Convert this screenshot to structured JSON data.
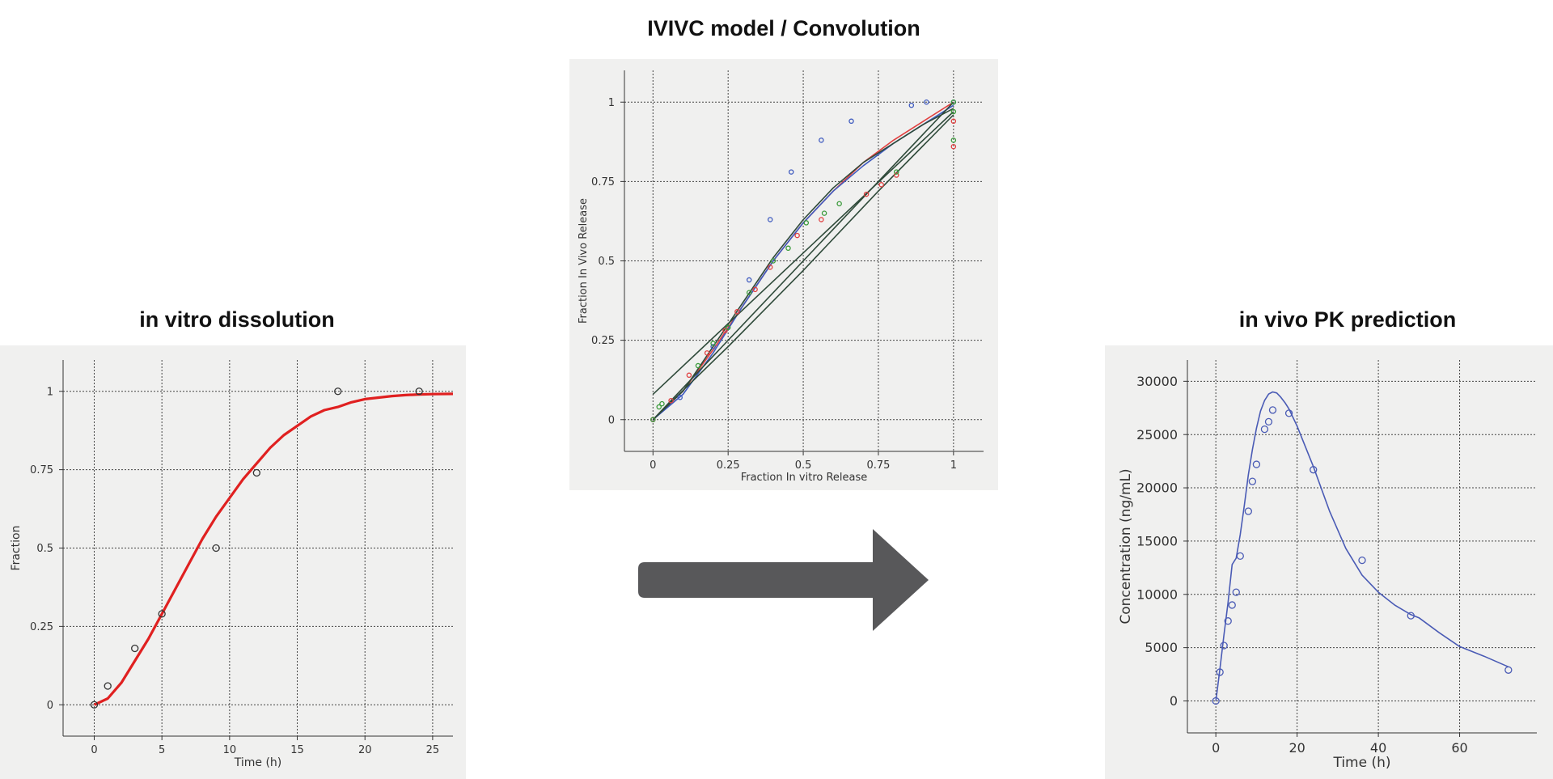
{
  "titles": {
    "left": "in vitro dissolution",
    "center": "IVIVC model / Convolution",
    "right": "in vivo PK prediction"
  },
  "colors": {
    "panel_bg": "#f0f0ef",
    "dissolution_curve": "#e02020",
    "pk_curve": "#4a5bb5",
    "ivivc_blue": "#3f5bbf",
    "ivivc_red": "#e04040",
    "ivivc_green": "#3a9a3a",
    "ivivc_line": "#2f4a3a",
    "arrow": "#58585a"
  },
  "arrow_icon": "right-arrow-icon",
  "chart_data": [
    {
      "id": "dissolution",
      "type": "scatter",
      "title": "in vitro dissolution",
      "xlabel": "Time (h)",
      "ylabel": "Fraction",
      "xlim": [
        -2.3,
        26.5
      ],
      "ylim": [
        -0.1,
        1.1
      ],
      "xticks": [
        0,
        5,
        10,
        15,
        20,
        25
      ],
      "yticks": [
        0,
        0.25,
        0.5,
        0.75,
        1
      ],
      "yticklabels": [
        "0",
        "0.25",
        "0.5",
        "0.75",
        "1"
      ],
      "grid": true,
      "series": [
        {
          "kind": "points",
          "color": "#333333",
          "x": [
            0,
            1,
            3,
            5,
            9,
            12,
            18,
            24
          ],
          "y": [
            0,
            0.06,
            0.18,
            0.29,
            0.5,
            0.74,
            1.0,
            1.0
          ]
        },
        {
          "kind": "line",
          "color": "#e02020",
          "x": [
            0,
            1,
            2,
            3,
            4,
            5,
            6,
            7,
            8,
            9,
            10,
            11,
            12,
            13,
            14,
            15,
            16,
            17,
            18,
            19,
            20,
            21,
            22,
            23,
            24,
            25,
            26.5
          ],
          "y": [
            0,
            0.02,
            0.07,
            0.14,
            0.21,
            0.29,
            0.37,
            0.45,
            0.53,
            0.6,
            0.66,
            0.72,
            0.77,
            0.82,
            0.86,
            0.89,
            0.92,
            0.94,
            0.95,
            0.965,
            0.975,
            0.98,
            0.985,
            0.988,
            0.99,
            0.991,
            0.992
          ]
        }
      ]
    },
    {
      "id": "ivivc",
      "type": "scatter",
      "title": "IVIVC model / Convolution",
      "xlabel": "Fraction In vitro Release",
      "ylabel": "Fraction In Vivo Release",
      "xlim": [
        -0.095,
        1.1
      ],
      "ylim": [
        -0.1,
        1.1
      ],
      "xticks": [
        0,
        0.25,
        0.5,
        0.75,
        1
      ],
      "xticklabels": [
        "0",
        "0.25",
        "0.5",
        "0.75",
        "1"
      ],
      "yticks": [
        0,
        0.25,
        0.5,
        0.75,
        1
      ],
      "yticklabels": [
        "0",
        "0.25",
        "0.5",
        "0.75",
        "1"
      ],
      "grid": true,
      "series": [
        {
          "kind": "points",
          "color": "#3f5bbf",
          "x": [
            0,
            0.09,
            0.2,
            0.32,
            0.39,
            0.46,
            0.56,
            0.66,
            0.86,
            0.91,
            1.0
          ],
          "y": [
            0,
            0.07,
            0.23,
            0.44,
            0.63,
            0.78,
            0.88,
            0.94,
            0.99,
            1.0,
            1.0
          ]
        },
        {
          "kind": "points",
          "color": "#e04040",
          "x": [
            0,
            0.06,
            0.12,
            0.18,
            0.24,
            0.28,
            0.34,
            0.39,
            0.48,
            0.56,
            0.71,
            0.76,
            0.81,
            1.0,
            1.0
          ],
          "y": [
            0,
            0.06,
            0.14,
            0.21,
            0.28,
            0.34,
            0.41,
            0.48,
            0.58,
            0.63,
            0.71,
            0.74,
            0.77,
            0.86,
            0.94
          ]
        },
        {
          "kind": "points",
          "color": "#3a9a3a",
          "x": [
            0,
            0.02,
            0.03,
            0.15,
            0.2,
            0.25,
            0.32,
            0.4,
            0.45,
            0.51,
            0.57,
            0.62,
            0.81,
            1.0,
            1.0,
            1.0
          ],
          "y": [
            0,
            0.04,
            0.05,
            0.17,
            0.24,
            0.29,
            0.4,
            0.5,
            0.54,
            0.62,
            0.65,
            0.68,
            0.78,
            0.88,
            0.97,
            1.0
          ]
        },
        {
          "kind": "line",
          "color": "#e04040",
          "x": [
            0,
            0.1,
            0.2,
            0.3,
            0.4,
            0.5,
            0.6,
            0.7,
            0.8,
            0.9,
            1.0
          ],
          "y": [
            0,
            0.09,
            0.22,
            0.36,
            0.5,
            0.62,
            0.72,
            0.81,
            0.88,
            0.94,
            1.0
          ]
        },
        {
          "kind": "line",
          "color": "#3f5bbf",
          "x": [
            0,
            0.1,
            0.2,
            0.3,
            0.4,
            0.5,
            0.6,
            0.7,
            0.8,
            0.9,
            1.0
          ],
          "y": [
            0,
            0.08,
            0.21,
            0.36,
            0.5,
            0.62,
            0.72,
            0.8,
            0.87,
            0.93,
            0.99
          ]
        },
        {
          "kind": "line",
          "color": "#2f4a3a",
          "x": [
            0,
            0.1,
            0.2,
            0.3,
            0.4,
            0.5,
            0.6,
            0.7,
            0.8,
            0.9,
            1.0
          ],
          "y": [
            0,
            0.09,
            0.23,
            0.37,
            0.51,
            0.63,
            0.73,
            0.81,
            0.87,
            0.93,
            0.98
          ]
        },
        {
          "kind": "line",
          "color": "#2f4a3a",
          "x": [
            0,
            1.0
          ],
          "y": [
            0.08,
            0.97
          ]
        },
        {
          "kind": "line",
          "color": "#2f4a3a",
          "x": [
            0,
            1.0
          ],
          "y": [
            0,
            1.0
          ]
        },
        {
          "kind": "line",
          "color": "#2f4a3a",
          "x": [
            0,
            0.25,
            0.5,
            0.75,
            1.0
          ],
          "y": [
            0,
            0.23,
            0.47,
            0.72,
            0.96
          ]
        }
      ]
    },
    {
      "id": "pk",
      "type": "scatter",
      "title": "in vivo PK prediction",
      "xlabel": "Time (h)",
      "ylabel": "Concentration (ng/mL)",
      "xlim": [
        -7,
        79
      ],
      "ylim": [
        -3000,
        32000
      ],
      "xticks": [
        0,
        20,
        40,
        60
      ],
      "yticks": [
        0,
        5000,
        10000,
        15000,
        20000,
        25000,
        30000
      ],
      "grid": true,
      "series": [
        {
          "kind": "points",
          "color": "#4a5bb5",
          "x": [
            0,
            1,
            2,
            3,
            4,
            5,
            6,
            8,
            9,
            10,
            12,
            13,
            14,
            18,
            24,
            36,
            48,
            72
          ],
          "y": [
            0,
            2700,
            5200,
            7500,
            9000,
            10200,
            13600,
            17800,
            20600,
            22200,
            25500,
            26200,
            27300,
            27000,
            21700,
            13200,
            8000,
            2900
          ]
        },
        {
          "kind": "line",
          "color": "#4a5bb5",
          "x": [
            0,
            1,
            2,
            3,
            4,
            5,
            6,
            7,
            8,
            9,
            10,
            11,
            12,
            13,
            14,
            15,
            16,
            17,
            18,
            20,
            24,
            28,
            32,
            36,
            40,
            44,
            48,
            50,
            55,
            60,
            66,
            72
          ],
          "y": [
            0,
            3000,
            6200,
            9200,
            12800,
            13400,
            15600,
            18300,
            21200,
            23600,
            25600,
            27200,
            28200,
            28800,
            29000,
            28900,
            28500,
            28000,
            27400,
            25800,
            22000,
            17800,
            14300,
            11800,
            10200,
            9000,
            8100,
            7800,
            6400,
            5100,
            4200,
            3200
          ]
        }
      ]
    }
  ]
}
